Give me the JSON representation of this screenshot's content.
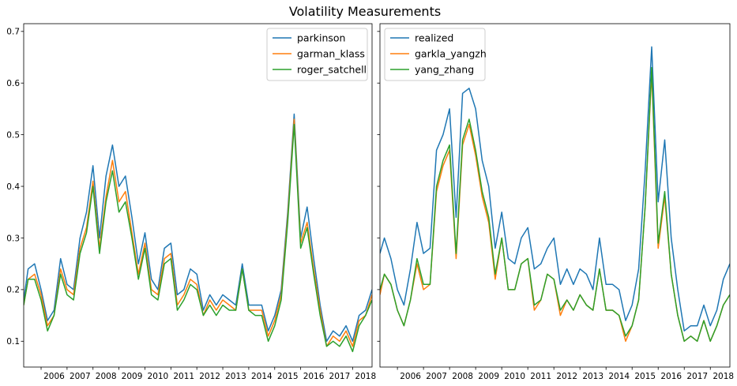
{
  "figure": {
    "title": "Volatility Measurements"
  },
  "chart_data": [
    {
      "type": "line",
      "title": "",
      "xlabel": "",
      "ylabel": "",
      "xlim": [
        2005.33,
        2018.75
      ],
      "ylim": [
        0.05,
        0.715
      ],
      "yticks": [
        0.1,
        0.2,
        0.3,
        0.4,
        0.5,
        0.6,
        0.7
      ],
      "ytick_labels": [
        "0.1",
        "0.2",
        "0.3",
        "0.4",
        "0.5",
        "0.6",
        "0.7"
      ],
      "xticks": [
        2006,
        2007,
        2008,
        2009,
        2010,
        2011,
        2012,
        2013,
        2014,
        2015,
        2016,
        2017,
        2018
      ],
      "xtick_labels": [
        "2006",
        "2007",
        "2008",
        "2009",
        "2010",
        "2011",
        "2012",
        "2013",
        "2014",
        "2015",
        "2016",
        "2017",
        "2018"
      ],
      "grid": false,
      "legend": "top-right",
      "x": [
        2005.33,
        2005.5,
        2005.75,
        2006.0,
        2006.25,
        2006.5,
        2006.75,
        2007.0,
        2007.25,
        2007.5,
        2007.75,
        2008.0,
        2008.25,
        2008.5,
        2008.75,
        2009.0,
        2009.25,
        2009.5,
        2009.75,
        2010.0,
        2010.25,
        2010.5,
        2010.75,
        2011.0,
        2011.25,
        2011.5,
        2011.75,
        2012.0,
        2012.25,
        2012.5,
        2012.75,
        2013.0,
        2013.25,
        2013.5,
        2013.75,
        2014.0,
        2014.25,
        2014.5,
        2014.75,
        2015.0,
        2015.25,
        2015.5,
        2015.75,
        2016.0,
        2016.25,
        2016.5,
        2016.75,
        2017.0,
        2017.25,
        2017.5,
        2017.75,
        2018.0,
        2018.25,
        2018.5,
        2018.75
      ],
      "series": [
        {
          "name": "parkinson",
          "color": "#1f77b4",
          "values": [
            0.18,
            0.24,
            0.25,
            0.2,
            0.14,
            0.16,
            0.26,
            0.21,
            0.2,
            0.3,
            0.35,
            0.44,
            0.3,
            0.42,
            0.48,
            0.4,
            0.42,
            0.34,
            0.25,
            0.31,
            0.22,
            0.2,
            0.28,
            0.29,
            0.19,
            0.2,
            0.24,
            0.23,
            0.16,
            0.19,
            0.17,
            0.19,
            0.18,
            0.17,
            0.25,
            0.17,
            0.17,
            0.17,
            0.12,
            0.15,
            0.2,
            0.35,
            0.54,
            0.3,
            0.36,
            0.26,
            0.17,
            0.1,
            0.12,
            0.11,
            0.13,
            0.1,
            0.15,
            0.16,
            0.2
          ]
        },
        {
          "name": "garman_klass",
          "color": "#ff7f0e",
          "values": [
            0.17,
            0.22,
            0.23,
            0.19,
            0.13,
            0.15,
            0.24,
            0.2,
            0.19,
            0.28,
            0.32,
            0.41,
            0.28,
            0.38,
            0.45,
            0.37,
            0.39,
            0.31,
            0.23,
            0.29,
            0.2,
            0.19,
            0.26,
            0.27,
            0.17,
            0.19,
            0.22,
            0.21,
            0.15,
            0.18,
            0.16,
            0.18,
            0.17,
            0.16,
            0.24,
            0.16,
            0.16,
            0.16,
            0.11,
            0.14,
            0.19,
            0.34,
            0.53,
            0.29,
            0.33,
            0.24,
            0.16,
            0.09,
            0.11,
            0.1,
            0.12,
            0.09,
            0.14,
            0.15,
            0.19
          ]
        },
        {
          "name": "roger_satchell",
          "color": "#2ca02c",
          "values": [
            0.17,
            0.22,
            0.22,
            0.18,
            0.12,
            0.15,
            0.23,
            0.19,
            0.18,
            0.27,
            0.31,
            0.4,
            0.27,
            0.37,
            0.43,
            0.35,
            0.37,
            0.3,
            0.22,
            0.28,
            0.19,
            0.18,
            0.25,
            0.26,
            0.16,
            0.18,
            0.21,
            0.2,
            0.15,
            0.17,
            0.15,
            0.17,
            0.16,
            0.16,
            0.24,
            0.16,
            0.15,
            0.15,
            0.1,
            0.13,
            0.18,
            0.33,
            0.52,
            0.28,
            0.32,
            0.23,
            0.15,
            0.09,
            0.1,
            0.09,
            0.11,
            0.08,
            0.13,
            0.15,
            0.18
          ]
        }
      ]
    },
    {
      "type": "line",
      "title": "",
      "xlabel": "",
      "ylabel": "",
      "xlim": [
        2005.33,
        2018.75
      ],
      "ylim": [
        0.05,
        0.715
      ],
      "yticks": [
        0.1,
        0.2,
        0.3,
        0.4,
        0.5,
        0.6,
        0.7
      ],
      "ytick_labels": [
        "",
        "",
        "",
        "",
        "",
        "",
        ""
      ],
      "xticks": [
        2006,
        2007,
        2008,
        2009,
        2010,
        2011,
        2012,
        2013,
        2014,
        2015,
        2016,
        2017,
        2018
      ],
      "xtick_labels": [
        "2006",
        "2007",
        "2008",
        "2009",
        "2010",
        "2011",
        "2012",
        "2013",
        "2014",
        "2015",
        "2016",
        "2017",
        "2018"
      ],
      "grid": false,
      "legend": "top-left",
      "x": [
        2005.33,
        2005.5,
        2005.75,
        2006.0,
        2006.25,
        2006.5,
        2006.75,
        2007.0,
        2007.25,
        2007.5,
        2007.75,
        2008.0,
        2008.25,
        2008.5,
        2008.75,
        2009.0,
        2009.25,
        2009.5,
        2009.75,
        2010.0,
        2010.25,
        2010.5,
        2010.75,
        2011.0,
        2011.25,
        2011.5,
        2011.75,
        2012.0,
        2012.25,
        2012.5,
        2012.75,
        2013.0,
        2013.25,
        2013.5,
        2013.75,
        2014.0,
        2014.25,
        2014.5,
        2014.75,
        2015.0,
        2015.25,
        2015.5,
        2015.75,
        2016.0,
        2016.25,
        2016.5,
        2016.75,
        2017.0,
        2017.25,
        2017.5,
        2017.75,
        2018.0,
        2018.25,
        2018.5,
        2018.75
      ],
      "series": [
        {
          "name": "realized",
          "color": "#1f77b4",
          "values": [
            0.27,
            0.3,
            0.26,
            0.2,
            0.17,
            0.24,
            0.33,
            0.27,
            0.28,
            0.47,
            0.5,
            0.55,
            0.34,
            0.58,
            0.59,
            0.55,
            0.45,
            0.4,
            0.28,
            0.35,
            0.26,
            0.25,
            0.3,
            0.32,
            0.24,
            0.25,
            0.28,
            0.3,
            0.21,
            0.24,
            0.21,
            0.24,
            0.23,
            0.2,
            0.3,
            0.21,
            0.21,
            0.2,
            0.14,
            0.17,
            0.24,
            0.43,
            0.67,
            0.37,
            0.49,
            0.3,
            0.2,
            0.12,
            0.13,
            0.13,
            0.17,
            0.13,
            0.16,
            0.22,
            0.25
          ]
        },
        {
          "name": "garkla_yangzh",
          "color": "#ff7f0e",
          "values": [
            0.19,
            0.23,
            0.21,
            0.16,
            0.13,
            0.18,
            0.25,
            0.2,
            0.21,
            0.39,
            0.44,
            0.47,
            0.26,
            0.48,
            0.52,
            0.46,
            0.38,
            0.33,
            0.22,
            0.3,
            0.2,
            0.2,
            0.25,
            0.26,
            0.16,
            0.18,
            0.23,
            0.22,
            0.15,
            0.18,
            0.16,
            0.19,
            0.17,
            0.16,
            0.24,
            0.16,
            0.16,
            0.15,
            0.1,
            0.13,
            0.18,
            0.36,
            0.62,
            0.28,
            0.38,
            0.23,
            0.15,
            0.1,
            0.11,
            0.1,
            0.14,
            0.1,
            0.13,
            0.17,
            0.19
          ]
        },
        {
          "name": "yang_zhang",
          "color": "#2ca02c",
          "values": [
            0.2,
            0.23,
            0.21,
            0.16,
            0.13,
            0.18,
            0.26,
            0.21,
            0.21,
            0.4,
            0.45,
            0.48,
            0.27,
            0.49,
            0.53,
            0.47,
            0.39,
            0.34,
            0.23,
            0.3,
            0.2,
            0.2,
            0.25,
            0.26,
            0.17,
            0.18,
            0.23,
            0.22,
            0.16,
            0.18,
            0.16,
            0.19,
            0.17,
            0.16,
            0.24,
            0.16,
            0.16,
            0.15,
            0.11,
            0.13,
            0.18,
            0.36,
            0.63,
            0.29,
            0.39,
            0.23,
            0.15,
            0.1,
            0.11,
            0.1,
            0.14,
            0.1,
            0.13,
            0.17,
            0.19
          ]
        }
      ]
    }
  ]
}
